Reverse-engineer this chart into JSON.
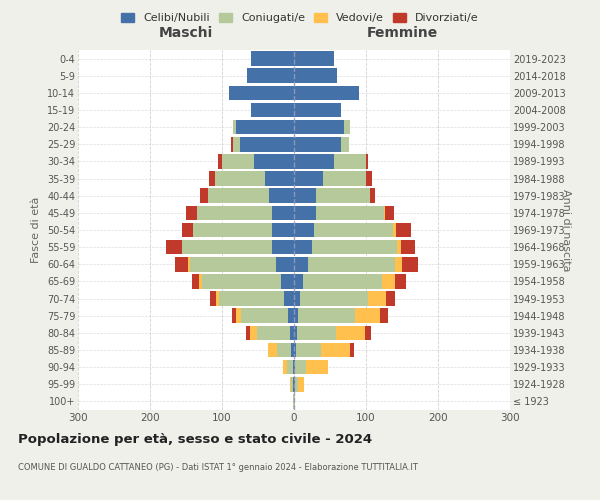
{
  "age_groups": [
    "100+",
    "95-99",
    "90-94",
    "85-89",
    "80-84",
    "75-79",
    "70-74",
    "65-69",
    "60-64",
    "55-59",
    "50-54",
    "45-49",
    "40-44",
    "35-39",
    "30-34",
    "25-29",
    "20-24",
    "15-19",
    "10-14",
    "5-9",
    "0-4"
  ],
  "birth_years": [
    "≤ 1923",
    "1924-1928",
    "1929-1933",
    "1934-1938",
    "1939-1943",
    "1944-1948",
    "1949-1953",
    "1954-1958",
    "1959-1963",
    "1964-1968",
    "1969-1973",
    "1974-1978",
    "1979-1983",
    "1984-1988",
    "1989-1993",
    "1994-1998",
    "1999-2003",
    "2004-2008",
    "2009-2013",
    "2014-2018",
    "2019-2023"
  ],
  "maschi": {
    "celibi": [
      0,
      1,
      2,
      4,
      6,
      8,
      14,
      18,
      25,
      30,
      30,
      30,
      35,
      40,
      55,
      75,
      80,
      60,
      90,
      65,
      60
    ],
    "coniugati": [
      1,
      3,
      8,
      20,
      45,
      65,
      90,
      110,
      120,
      125,
      110,
      105,
      85,
      70,
      45,
      10,
      5,
      0,
      0,
      0,
      0
    ],
    "vedovi": [
      0,
      2,
      5,
      12,
      10,
      8,
      5,
      4,
      2,
      1,
      0,
      0,
      0,
      0,
      0,
      0,
      0,
      0,
      0,
      0,
      0
    ],
    "divorziati": [
      0,
      0,
      0,
      0,
      5,
      5,
      8,
      10,
      18,
      22,
      15,
      15,
      10,
      8,
      5,
      3,
      0,
      0,
      0,
      0,
      0
    ]
  },
  "femmine": {
    "nubili": [
      0,
      1,
      2,
      3,
      4,
      5,
      8,
      12,
      20,
      25,
      28,
      30,
      30,
      40,
      55,
      65,
      70,
      65,
      90,
      60,
      55
    ],
    "coniugate": [
      1,
      5,
      15,
      35,
      55,
      80,
      95,
      110,
      120,
      118,
      110,
      95,
      75,
      60,
      45,
      12,
      8,
      0,
      0,
      0,
      0
    ],
    "vedove": [
      1,
      8,
      30,
      40,
      40,
      35,
      25,
      18,
      10,
      5,
      3,
      2,
      0,
      0,
      0,
      0,
      0,
      0,
      0,
      0,
      0
    ],
    "divorziate": [
      0,
      0,
      0,
      5,
      8,
      10,
      12,
      15,
      22,
      20,
      22,
      12,
      8,
      8,
      3,
      0,
      0,
      0,
      0,
      0,
      0
    ]
  },
  "colors": {
    "celibi_nubili": "#4472a8",
    "coniugati": "#b5c99a",
    "vedovi": "#ffc04d",
    "divorziati": "#c0392b"
  },
  "xlim": 300,
  "title": "Popolazione per età, sesso e stato civile - 2024",
  "subtitle": "COMUNE DI GUALDO CATTANEO (PG) - Dati ISTAT 1° gennaio 2024 - Elaborazione TUTTITALIA.IT",
  "ylabel_left": "Fasce di età",
  "ylabel_right": "Anni di nascita",
  "xlabel_left": "Maschi",
  "xlabel_right": "Femmine",
  "bg_color": "#f0f0eb",
  "plot_bg": "#ffffff"
}
